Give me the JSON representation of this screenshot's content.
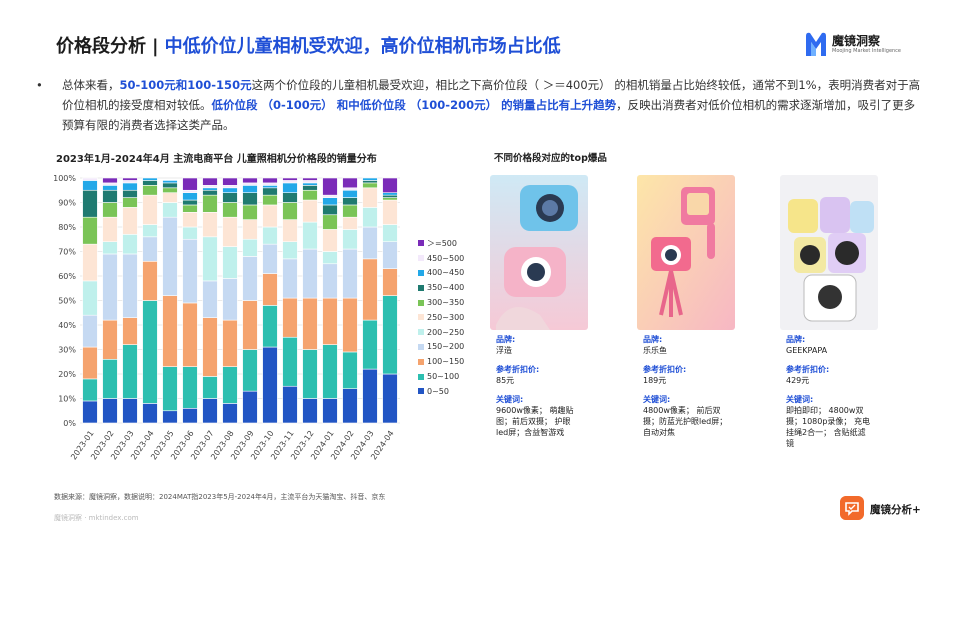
{
  "header": {
    "title_part1": "价格段分析",
    "separator": "|",
    "title_part2": "中低价位儿童相机受欢迎，高价位相机市场占比低",
    "logo_name": "魔镜洞察",
    "logo_sub": "Moojing Market Intelligence"
  },
  "summary": {
    "bullet": "•",
    "seg1": "总体来看，",
    "seg2": "50-100元和100-150元",
    "seg3": "这两个价位段的儿童相机最受欢迎，相比之下高价位段（ ＞＝400元） 的相机销量占比始终较低，通常不到1%，表明消费者对于高价位相机的接受度相对较低。",
    "seg4": "低价位段 （0-100元） 和中低价位段 （100-200元） 的销量占比有上升趋势",
    "seg5": "，反映出消费者对低价位相机的需求逐渐增加，吸引了更多预算有限的消费者选择这类产品。"
  },
  "chart_data": {
    "type": "bar",
    "stacked": true,
    "title": "2023年1月-2024年4月 主流电商平台 儿童照相机分价格段的销量分布",
    "ylim": [
      0,
      100
    ],
    "yticks": [
      "0%",
      "10%",
      "20%",
      "30%",
      "40%",
      "50%",
      "60%",
      "70%",
      "80%",
      "90%",
      "100%"
    ],
    "grid": true,
    "legend_position": "right",
    "categories": [
      "2023-01",
      "2023-02",
      "2023-03",
      "2023-04",
      "2023-05",
      "2023-06",
      "2023-07",
      "2023-08",
      "2023-09",
      "2023-10",
      "2023-11",
      "2023-12",
      "2024-01",
      "2024-02",
      "2024-03",
      "2024-04"
    ],
    "series": [
      {
        "name": "0~50",
        "color": "#2255c4",
        "values": [
          9,
          10,
          10,
          8,
          5,
          6,
          10,
          8,
          13,
          31,
          15,
          10,
          10,
          14,
          22,
          20
        ]
      },
      {
        "name": "50~100",
        "color": "#2dbfb0",
        "values": [
          9,
          16,
          22,
          42,
          18,
          17,
          9,
          15,
          17,
          17,
          20,
          20,
          22,
          15,
          20,
          32
        ]
      },
      {
        "name": "100~150",
        "color": "#f5a36e",
        "values": [
          13,
          16,
          11,
          16,
          29,
          26,
          24,
          19,
          20,
          13,
          16,
          21,
          19,
          22,
          25,
          11
        ]
      },
      {
        "name": "150~200",
        "color": "#c5d9f2",
        "values": [
          13,
          27,
          26,
          10,
          32,
          26,
          15,
          17,
          18,
          12,
          16,
          20,
          14,
          20,
          13,
          11
        ]
      },
      {
        "name": "200~250",
        "color": "#bff0ec",
        "values": [
          14,
          5,
          8,
          5,
          6,
          5,
          18,
          13,
          7,
          7,
          7,
          11,
          5,
          8,
          8,
          7
        ]
      },
      {
        "name": "250~300",
        "color": "#fde5d5",
        "values": [
          15,
          10,
          11,
          12,
          4,
          6,
          10,
          12,
          8,
          9,
          9,
          9,
          9,
          5,
          8,
          10
        ]
      },
      {
        "name": "300~350",
        "color": "#7ac457",
        "values": [
          11,
          6,
          4,
          4,
          2,
          3,
          7,
          6,
          6,
          4,
          7,
          4,
          6,
          5,
          2,
          1
        ]
      },
      {
        "name": "350~400",
        "color": "#1f7a70",
        "values": [
          11,
          5,
          3,
          2,
          2,
          2,
          2,
          4,
          5,
          3,
          4,
          2,
          4,
          3,
          1,
          1
        ]
      },
      {
        "name": "400~450",
        "color": "#22a8e8",
        "values": [
          4,
          2,
          3,
          1,
          1,
          3,
          1,
          2,
          3,
          1,
          4,
          1,
          3,
          3,
          1,
          1
        ]
      },
      {
        "name": "450~500",
        "color": "#f3e9fb",
        "values": [
          1,
          1,
          1,
          0,
          0,
          1,
          1,
          1,
          1,
          1,
          1,
          1,
          1,
          1,
          0,
          0
        ]
      },
      {
        "name": "＞=500",
        "color": "#7a2bb8",
        "values": [
          0,
          2,
          1,
          0,
          0,
          5,
          3,
          3,
          2,
          2,
          1,
          1,
          7,
          4,
          0,
          6
        ]
      }
    ]
  },
  "products": {
    "title": "不同价格段对应的top爆品",
    "brand_label": "品牌:",
    "price_label": "参考折扣价:",
    "keyword_label": "关键词:",
    "items": [
      {
        "brand": "浮造",
        "price": "85元",
        "keywords": "9600w像素；  萌趣贴图；前后双摄；  护眼led屏；含益智游戏"
      },
      {
        "brand": "乐乐鱼",
        "price": "189元",
        "keywords": "4800w像素；  前后双摄；防蓝光护眼led屏；  自动对焦"
      },
      {
        "brand": "GEEKPAPA",
        "price": "429元",
        "keywords": "即拍即印；  4800w双摄；1080p录像；  充电挂绳2合一；  含贴纸滤镜"
      }
    ]
  },
  "footer": {
    "source": "数据来源：魔镜洞察，数据说明：2024MAT指2023年5月-2024年4月，主流平台为天猫淘宝、抖音、京东",
    "url": "魔镜洞察 · mktindex.com",
    "brand": "魔镜分析+"
  },
  "icons": {
    "logo": "moojing-m-logo-icon",
    "brand": "moojing-analysis-chat-icon",
    "product_images": [
      "kids-camera-blue-photo",
      "kids-camera-pink-tripod-photo",
      "kids-camera-instant-print-photo"
    ]
  }
}
